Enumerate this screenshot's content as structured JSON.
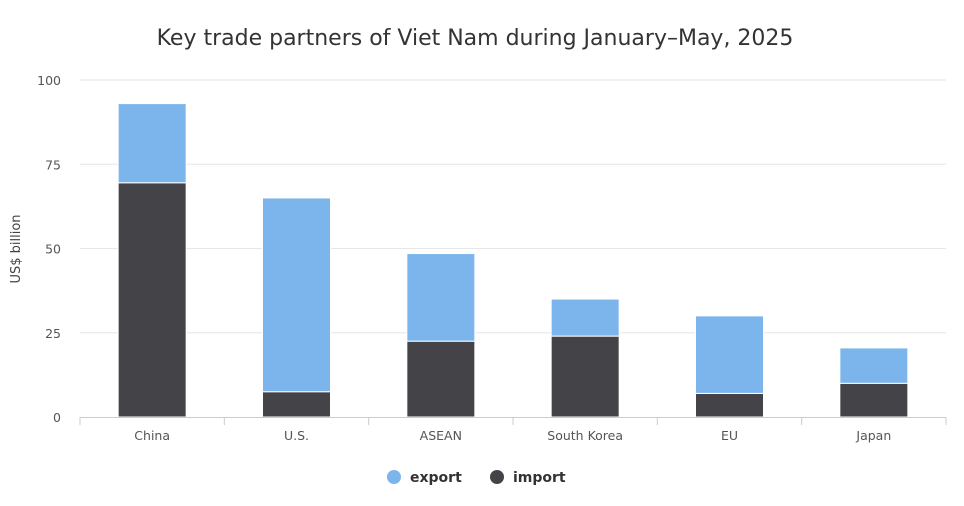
{
  "chart_data": {
    "type": "bar",
    "stacked": true,
    "title": "Key trade partners of Viet Nam during January–May, 2025",
    "xlabel": "",
    "ylabel": "US$ billion",
    "ylim": [
      0,
      100
    ],
    "yticks": [
      0,
      25,
      50,
      75,
      100
    ],
    "grid": true,
    "legend_position": "bottom-center",
    "categories": [
      "China",
      "U.S.",
      "ASEAN",
      "South Korea",
      "EU",
      "Japan"
    ],
    "series": [
      {
        "name": "import",
        "color": "#434348",
        "values": [
          69.5,
          7.5,
          22.5,
          24,
          7,
          10
        ]
      },
      {
        "name": "export",
        "color": "#7cb5ec",
        "values": [
          23.5,
          57.5,
          26,
          11,
          23,
          10.5
        ]
      }
    ],
    "legend": [
      {
        "name": "export",
        "color": "#7cb5ec"
      },
      {
        "name": "import",
        "color": "#434348"
      }
    ]
  }
}
